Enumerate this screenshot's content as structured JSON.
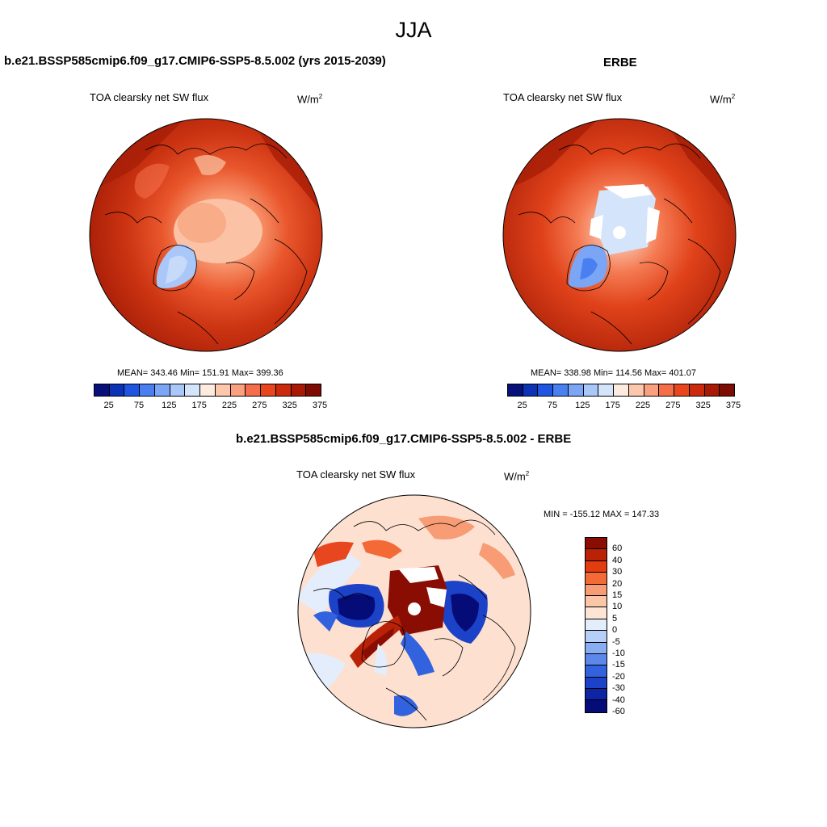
{
  "figure_title": "JJA",
  "top_left": {
    "title": "b.e21.BSSP585cmip6.f09_g17.CMIP6-SSP5-8.5.002 (yrs 2015-2039)",
    "variable": "TOA clearsky net SW flux",
    "units": "W/m",
    "units_exp": "2",
    "stats": "MEAN= 343.46  Min= 151.91  Max= 399.36"
  },
  "top_right": {
    "title": "ERBE",
    "variable": "TOA clearsky net SW flux",
    "units": "W/m",
    "units_exp": "2",
    "stats": "MEAN= 338.98  Min= 114.56  Max= 401.07"
  },
  "bottom": {
    "title": "b.e21.BSSP585cmip6.f09_g17.CMIP6-SSP5-8.5.002 - ERBE",
    "variable": "TOA clearsky net SW flux",
    "units": "W/m",
    "units_exp": "2",
    "stats": "MIN = -155.12 MAX = 147.33"
  },
  "abs_colorbar": {
    "colors": [
      "#08117a",
      "#0c33b5",
      "#1f55e0",
      "#4a7ff2",
      "#7ba5f5",
      "#a9c7f8",
      "#d3e4fb",
      "#fdebe0",
      "#fcc7ad",
      "#f9a07e",
      "#f46e49",
      "#e8461f",
      "#cc2a0c",
      "#a81a06",
      "#7d0c03"
    ],
    "tick_labels": [
      "25",
      "75",
      "125",
      "175",
      "225",
      "275",
      "325",
      "375"
    ]
  },
  "diff_colorbar": {
    "colors": [
      "#8a0d04",
      "#b92207",
      "#e23d10",
      "#f36a36",
      "#f79c74",
      "#fbc6a7",
      "#fde5d6",
      "#e4edfb",
      "#b5cff7",
      "#88adf2",
      "#5c88ea",
      "#3262de",
      "#1c42c8",
      "#0d24a6",
      "#050c78"
    ],
    "labels": [
      "60",
      "40",
      "30",
      "20",
      "15",
      "10",
      "5",
      "0",
      "-5",
      "-10",
      "-15",
      "-20",
      "-30",
      "-40",
      "-60"
    ]
  }
}
